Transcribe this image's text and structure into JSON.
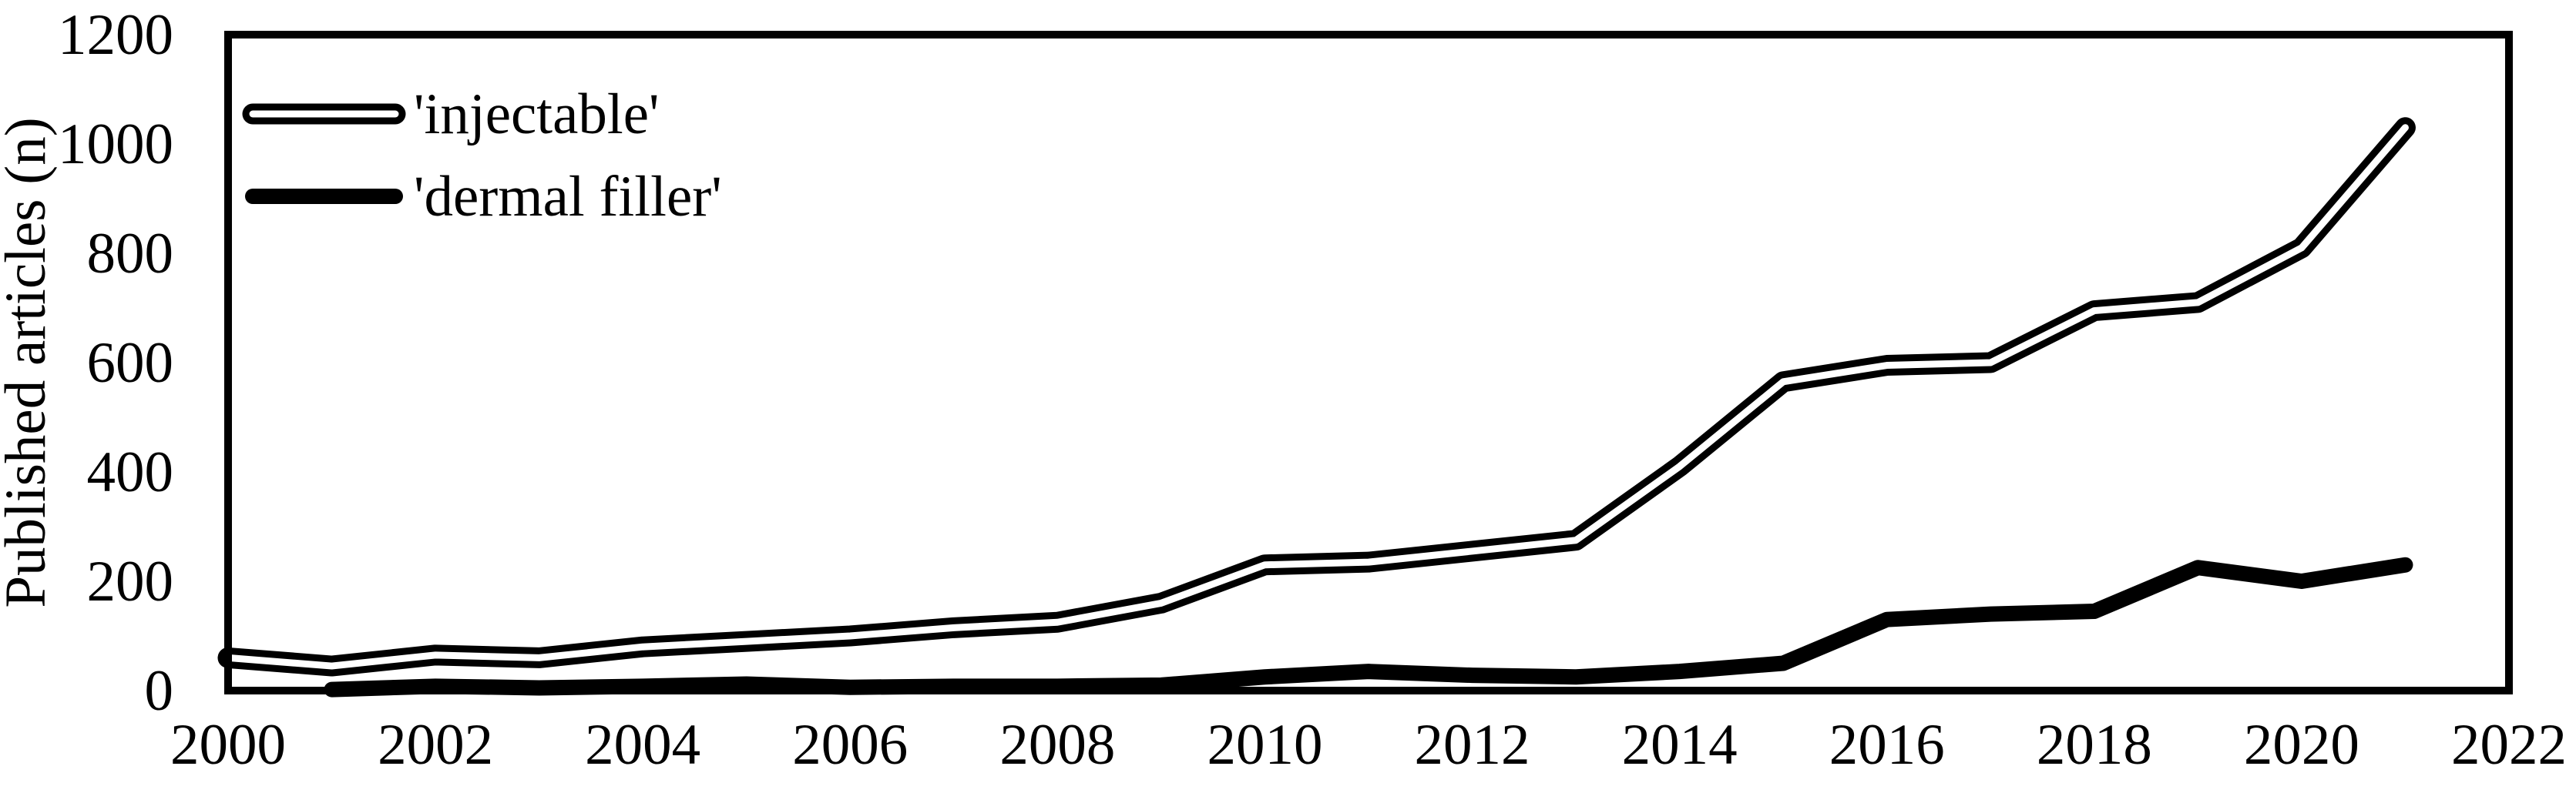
{
  "chart_data": {
    "type": "line",
    "title": "",
    "xlabel": "",
    "ylabel": "Published articles (n)",
    "xlim": [
      2000,
      2022
    ],
    "ylim": [
      0,
      1200
    ],
    "x_ticks": [
      2000,
      2002,
      2004,
      2006,
      2008,
      2010,
      2012,
      2014,
      2016,
      2018,
      2020,
      2022
    ],
    "y_ticks": [
      0,
      200,
      400,
      600,
      800,
      1000,
      1200
    ],
    "grid": false,
    "background_color": "#ffffff",
    "line_color": "#000000",
    "legend": {
      "position": "top-left-inside",
      "entries": [
        "'injectable'",
        "'dermal filler'"
      ]
    },
    "series": [
      {
        "id": "injectable",
        "name": "'injectable'",
        "line_style": "hollow-double",
        "color": "#000000",
        "x": [
          2000,
          2001,
          2002,
          2003,
          2004,
          2005,
          2006,
          2007,
          2008,
          2009,
          2010,
          2011,
          2012,
          2013,
          2014,
          2015,
          2016,
          2017,
          2018,
          2019,
          2020,
          2021
        ],
        "values": [
          60,
          45,
          65,
          60,
          80,
          90,
          100,
          115,
          125,
          160,
          230,
          235,
          255,
          275,
          410,
          565,
          595,
          600,
          695,
          710,
          810,
          1030
        ]
      },
      {
        "id": "dermal-filler",
        "name": "'dermal filler'",
        "line_style": "solid-thick",
        "color": "#000000",
        "x": [
          2001,
          2002,
          2003,
          2004,
          2005,
          2006,
          2007,
          2008,
          2009,
          2010,
          2011,
          2012,
          2013,
          2014,
          2015,
          2016,
          2017,
          2018,
          2019,
          2020,
          2021
        ],
        "values": [
          2,
          8,
          5,
          8,
          12,
          6,
          8,
          8,
          10,
          25,
          35,
          28,
          25,
          35,
          50,
          130,
          140,
          145,
          225,
          200,
          230
        ]
      }
    ]
  }
}
